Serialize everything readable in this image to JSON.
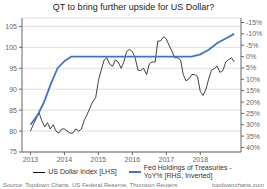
{
  "chart_data": {
    "type": "line",
    "title": "QT to bring further upside for US Dollar?",
    "annotations": [
      "Source: Topdown Charts, US Federal Reserve, Thomson Reuters",
      "topdowncharts.com"
    ],
    "series": [
      {
        "name": "US Dollar Index [LHS]",
        "color": "#111111",
        "axis": "y",
        "x": [
          2013.0,
          2013.08,
          2013.17,
          2013.25,
          2013.33,
          2013.42,
          2013.5,
          2013.58,
          2013.67,
          2013.75,
          2013.83,
          2013.92,
          2014.0,
          2014.08,
          2014.17,
          2014.25,
          2014.33,
          2014.42,
          2014.5,
          2014.58,
          2014.67,
          2014.75,
          2014.83,
          2014.92,
          2015.0,
          2015.08,
          2015.17,
          2015.25,
          2015.33,
          2015.42,
          2015.5,
          2015.58,
          2015.67,
          2015.75,
          2015.83,
          2015.92,
          2016.0,
          2016.08,
          2016.17,
          2016.25,
          2016.33,
          2016.42,
          2016.5,
          2016.58,
          2016.67,
          2016.75,
          2016.83,
          2016.92,
          2017.0,
          2017.08,
          2017.17,
          2017.25,
          2017.33,
          2017.42,
          2017.5,
          2017.58,
          2017.67,
          2017.75,
          2017.83,
          2017.92,
          2018.0,
          2018.08,
          2018.17,
          2018.25,
          2018.33,
          2018.42,
          2018.5,
          2018.58,
          2018.67,
          2018.75,
          2018.83,
          2018.92,
          2019.0
        ],
        "values": [
          80.0,
          81.5,
          83.0,
          84.5,
          82.5,
          81.0,
          82.0,
          80.5,
          81.5,
          80.0,
          79.5,
          80.5,
          80.5,
          80.0,
          79.5,
          79.5,
          80.5,
          80.0,
          80.5,
          82.5,
          84.0,
          85.5,
          87.0,
          88.0,
          92.0,
          94.5,
          97.0,
          97.5,
          96.0,
          95.5,
          97.0,
          96.5,
          95.0,
          96.5,
          99.0,
          99.5,
          99.0,
          97.5,
          94.5,
          94.5,
          95.0,
          93.5,
          96.0,
          96.5,
          96.5,
          101.5,
          101.5,
          102.5,
          102.0,
          100.5,
          99.0,
          97.5,
          97.5,
          97.0,
          93.5,
          92.0,
          92.5,
          93.5,
          93.5,
          93.0,
          89.5,
          88.5,
          90.0,
          92.5,
          94.5,
          95.0,
          95.5,
          94.0,
          94.5,
          96.5,
          97.0,
          97.5,
          96.5
        ]
      },
      {
        "name": "Fed Holdings of Treasuries -\nYoY% [RHS, Inverted]",
        "color": "#4472C4",
        "axis": "y2",
        "x": [
          2013.0,
          2013.2,
          2013.4,
          2013.6,
          2013.8,
          2014.0,
          2014.2,
          2014.5,
          2014.75,
          2015.0,
          2015.25,
          2015.5,
          2015.75,
          2016.0,
          2016.25,
          2016.5,
          2016.75,
          2017.0,
          2017.25,
          2017.5,
          2017.75,
          2018.0,
          2018.25,
          2018.5,
          2018.75,
          2019.0
        ],
        "values": [
          30,
          26,
          20,
          12,
          5,
          2,
          0,
          0,
          0,
          0,
          0,
          0,
          0,
          0,
          0,
          0,
          0,
          0,
          0,
          0,
          0,
          -1,
          -3,
          -6,
          -8,
          -10
        ]
      }
    ],
    "xlim": [
      2012.75,
      2019.2
    ],
    "xticks": [
      2013,
      2014,
      2015,
      2016,
      2017,
      2018
    ],
    "ylim": [
      75,
      107
    ],
    "yticks": [
      75,
      80,
      85,
      90,
      95,
      100,
      105
    ],
    "y2lim": [
      42,
      -17
    ],
    "y2ticks": [
      {
        "value": -15,
        "label": "-15%"
      },
      {
        "value": -10,
        "label": "-10%"
      },
      {
        "value": -5,
        "label": "-5%"
      },
      {
        "value": 0,
        "label": "0%"
      },
      {
        "value": 5,
        "label": "5%"
      },
      {
        "value": 10,
        "label": "10%"
      },
      {
        "value": 15,
        "label": "15%"
      },
      {
        "value": 20,
        "label": "20%"
      },
      {
        "value": 25,
        "label": "25%"
      },
      {
        "value": 30,
        "label": "30%"
      },
      {
        "value": 35,
        "label": "35%"
      },
      {
        "value": 40,
        "label": "40%"
      }
    ],
    "grid": true,
    "legend": "bottom"
  }
}
